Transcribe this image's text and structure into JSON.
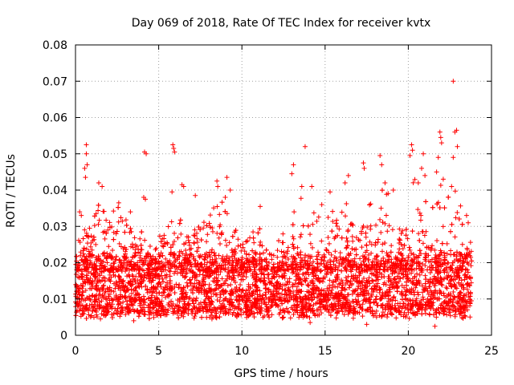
{
  "chart_data": {
    "type": "scatter",
    "title": "Day 069 of 2018, Rate Of TEC Index for receiver kvtx",
    "xlabel": "GPS time / hours",
    "ylabel": "ROTI / TECUs",
    "xlim": [
      0,
      25
    ],
    "ylim": [
      0,
      0.08
    ],
    "xticks": [
      0,
      5,
      10,
      15,
      20,
      25
    ],
    "yticks": [
      0,
      0.01,
      0.02,
      0.03,
      0.04,
      0.05,
      0.06,
      0.07,
      0.08
    ],
    "xtick_labels": [
      "0",
      "5",
      "10",
      "15",
      "20",
      "25"
    ],
    "ytick_labels": [
      "0",
      "0.01",
      "0.02",
      "0.03",
      "0.04",
      "0.05",
      "0.06",
      "0.07",
      "0.08"
    ],
    "grid": true,
    "marker": "plus",
    "color": "#ff0000",
    "x_range_of_data": [
      0,
      23.8
    ],
    "baseline": {
      "low": 0.006,
      "high": 0.022
    },
    "envelope": [
      {
        "x": 0.0,
        "max": 0.024
      },
      {
        "x": 0.5,
        "max": 0.034
      },
      {
        "x": 1.0,
        "max": 0.03
      },
      {
        "x": 1.5,
        "max": 0.04
      },
      {
        "x": 2.0,
        "max": 0.032
      },
      {
        "x": 2.5,
        "max": 0.036
      },
      {
        "x": 3.0,
        "max": 0.033
      },
      {
        "x": 3.5,
        "max": 0.028
      },
      {
        "x": 4.0,
        "max": 0.03
      },
      {
        "x": 4.5,
        "max": 0.026
      },
      {
        "x": 5.0,
        "max": 0.028
      },
      {
        "x": 5.5,
        "max": 0.03
      },
      {
        "x": 6.0,
        "max": 0.034
      },
      {
        "x": 6.5,
        "max": 0.032
      },
      {
        "x": 7.0,
        "max": 0.03
      },
      {
        "x": 7.5,
        "max": 0.03
      },
      {
        "x": 8.0,
        "max": 0.034
      },
      {
        "x": 8.5,
        "max": 0.036
      },
      {
        "x": 9.0,
        "max": 0.04
      },
      {
        "x": 9.5,
        "max": 0.03
      },
      {
        "x": 10.0,
        "max": 0.026
      },
      {
        "x": 10.5,
        "max": 0.028
      },
      {
        "x": 11.0,
        "max": 0.034
      },
      {
        "x": 11.5,
        "max": 0.026
      },
      {
        "x": 12.0,
        "max": 0.026
      },
      {
        "x": 12.5,
        "max": 0.03
      },
      {
        "x": 13.0,
        "max": 0.034
      },
      {
        "x": 13.5,
        "max": 0.04
      },
      {
        "x": 14.0,
        "max": 0.038
      },
      {
        "x": 14.5,
        "max": 0.034
      },
      {
        "x": 15.0,
        "max": 0.032
      },
      {
        "x": 15.5,
        "max": 0.036
      },
      {
        "x": 16.0,
        "max": 0.04
      },
      {
        "x": 16.5,
        "max": 0.034
      },
      {
        "x": 17.0,
        "max": 0.03
      },
      {
        "x": 17.5,
        "max": 0.034
      },
      {
        "x": 18.0,
        "max": 0.04
      },
      {
        "x": 18.5,
        "max": 0.044
      },
      {
        "x": 19.0,
        "max": 0.036
      },
      {
        "x": 19.5,
        "max": 0.032
      },
      {
        "x": 20.0,
        "max": 0.042
      },
      {
        "x": 20.5,
        "max": 0.044
      },
      {
        "x": 21.0,
        "max": 0.038
      },
      {
        "x": 21.5,
        "max": 0.036
      },
      {
        "x": 22.0,
        "max": 0.044
      },
      {
        "x": 22.5,
        "max": 0.04
      },
      {
        "x": 23.0,
        "max": 0.04
      },
      {
        "x": 23.5,
        "max": 0.03
      },
      {
        "x": 23.8,
        "max": 0.026
      }
    ],
    "outliers": [
      {
        "x": 0.65,
        "y": 0.0525
      },
      {
        "x": 0.65,
        "y": 0.05
      },
      {
        "x": 0.7,
        "y": 0.047
      },
      {
        "x": 0.55,
        "y": 0.046
      },
      {
        "x": 0.6,
        "y": 0.0435
      },
      {
        "x": 0.25,
        "y": 0.034
      },
      {
        "x": 0.35,
        "y": 0.033
      },
      {
        "x": 1.4,
        "y": 0.042
      },
      {
        "x": 1.6,
        "y": 0.041
      },
      {
        "x": 2.6,
        "y": 0.0365
      },
      {
        "x": 3.3,
        "y": 0.034
      },
      {
        "x": 4.15,
        "y": 0.0505
      },
      {
        "x": 4.25,
        "y": 0.05
      },
      {
        "x": 4.1,
        "y": 0.038
      },
      {
        "x": 4.2,
        "y": 0.0375
      },
      {
        "x": 5.85,
        "y": 0.0525
      },
      {
        "x": 5.9,
        "y": 0.0515
      },
      {
        "x": 5.95,
        "y": 0.0505
      },
      {
        "x": 5.8,
        "y": 0.0395
      },
      {
        "x": 6.4,
        "y": 0.0415
      },
      {
        "x": 6.5,
        "y": 0.041
      },
      {
        "x": 7.2,
        "y": 0.0385
      },
      {
        "x": 8.5,
        "y": 0.0425
      },
      {
        "x": 8.55,
        "y": 0.041
      },
      {
        "x": 9.1,
        "y": 0.0435
      },
      {
        "x": 9.3,
        "y": 0.04
      },
      {
        "x": 9.0,
        "y": 0.038
      },
      {
        "x": 11.1,
        "y": 0.0355
      },
      {
        "x": 13.0,
        "y": 0.0445
      },
      {
        "x": 13.1,
        "y": 0.047
      },
      {
        "x": 13.8,
        "y": 0.052
      },
      {
        "x": 13.6,
        "y": 0.041
      },
      {
        "x": 14.2,
        "y": 0.041
      },
      {
        "x": 14.8,
        "y": 0.036
      },
      {
        "x": 15.3,
        "y": 0.0395
      },
      {
        "x": 16.2,
        "y": 0.042
      },
      {
        "x": 16.4,
        "y": 0.044
      },
      {
        "x": 17.3,
        "y": 0.0475
      },
      {
        "x": 17.35,
        "y": 0.046
      },
      {
        "x": 18.3,
        "y": 0.0495
      },
      {
        "x": 18.4,
        "y": 0.047
      },
      {
        "x": 18.6,
        "y": 0.042
      },
      {
        "x": 19.1,
        "y": 0.04
      },
      {
        "x": 20.2,
        "y": 0.0525
      },
      {
        "x": 20.25,
        "y": 0.051
      },
      {
        "x": 20.1,
        "y": 0.0495
      },
      {
        "x": 20.9,
        "y": 0.05
      },
      {
        "x": 20.8,
        "y": 0.046
      },
      {
        "x": 21.0,
        "y": 0.044
      },
      {
        "x": 20.6,
        "y": 0.042
      },
      {
        "x": 21.9,
        "y": 0.056
      },
      {
        "x": 21.95,
        "y": 0.0545
      },
      {
        "x": 22.0,
        "y": 0.053
      },
      {
        "x": 21.8,
        "y": 0.049
      },
      {
        "x": 21.7,
        "y": 0.045
      },
      {
        "x": 22.1,
        "y": 0.043
      },
      {
        "x": 22.7,
        "y": 0.07
      },
      {
        "x": 22.9,
        "y": 0.0565
      },
      {
        "x": 22.8,
        "y": 0.056
      },
      {
        "x": 22.95,
        "y": 0.052
      },
      {
        "x": 22.7,
        "y": 0.049
      },
      {
        "x": 22.6,
        "y": 0.041
      },
      {
        "x": 23.5,
        "y": 0.033
      },
      {
        "x": 23.6,
        "y": 0.031
      }
    ],
    "low_outliers": [
      {
        "x": 1.5,
        "y": 0.0045
      },
      {
        "x": 3.5,
        "y": 0.004
      },
      {
        "x": 17.5,
        "y": 0.003
      },
      {
        "x": 21.6,
        "y": 0.0025
      },
      {
        "x": 14.1,
        "y": 0.0035
      },
      {
        "x": 8.2,
        "y": 0.0045
      }
    ]
  }
}
